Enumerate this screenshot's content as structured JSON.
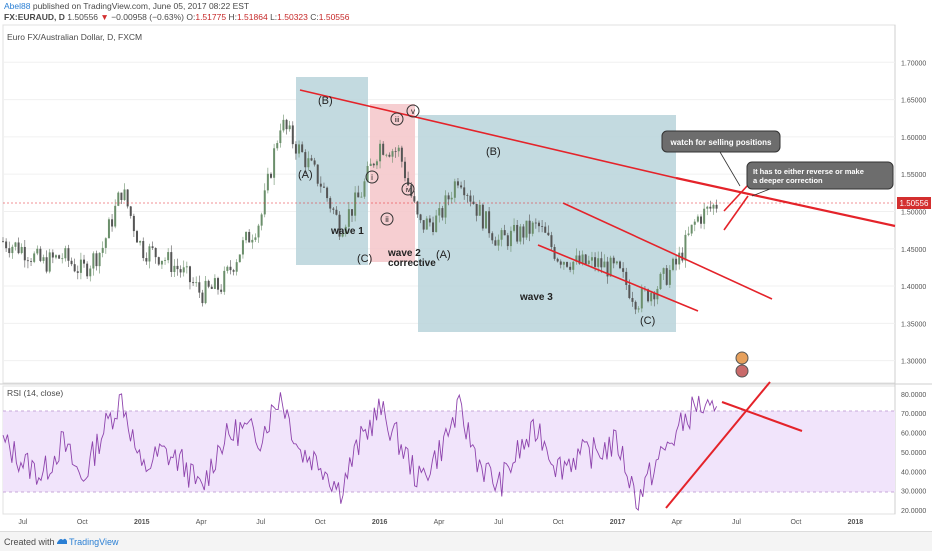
{
  "header": {
    "author": "Abel88",
    "published": "published on TradingView.com, June 05, 2017 08:22 EST",
    "symbol": "FX:EURAUD, D",
    "price": "1.50556",
    "arrow": "▼",
    "change": "−0.00958 (−0.63%)",
    "ohlc": {
      "o_label": "O:",
      "o": "1.51775",
      "h_label": "H:",
      "h": "1.51864",
      "l_label": "L:",
      "l": "1.50323",
      "c_label": "C:",
      "c": "1.50556"
    }
  },
  "footer": {
    "created": "Created with",
    "brand": "TradingView"
  },
  "chart_data": [
    {
      "type": "candlestick",
      "title": "Euro FX/Australian Dollar, D, FXCM",
      "ylim": [
        1.27,
        1.75
      ],
      "yticks": [
        "1.70000",
        "1.65000",
        "1.60000",
        "1.55000",
        "1.50000",
        "1.45000",
        "1.40000",
        "1.35000",
        "1.30000"
      ],
      "current_price_label": "1.50556",
      "xticks": [
        "Jul",
        "Oct",
        "2015",
        "Apr",
        "Jul",
        "Oct",
        "2016",
        "Apr",
        "Jul",
        "Oct",
        "2017",
        "Apr",
        "Jul",
        "Oct",
        "2018"
      ],
      "series": [
        {
          "values": [
            {
              "x": "2014-06",
              "y": 1.46
            },
            {
              "x": "2014-07",
              "y": 1.45
            },
            {
              "x": "2014-08",
              "y": 1.43
            },
            {
              "x": "2014-09",
              "y": 1.44
            },
            {
              "x": "2014-10",
              "y": 1.42
            },
            {
              "x": "2014-11",
              "y": 1.45
            },
            {
              "x": "2014-12",
              "y": 1.53
            },
            {
              "x": "2015-01",
              "y": 1.45
            },
            {
              "x": "2015-02",
              "y": 1.44
            },
            {
              "x": "2015-03",
              "y": 1.42
            },
            {
              "x": "2015-04",
              "y": 1.39
            },
            {
              "x": "2015-05",
              "y": 1.4
            },
            {
              "x": "2015-06",
              "y": 1.45
            },
            {
              "x": "2015-07",
              "y": 1.49
            },
            {
              "x": "2015-08",
              "y": 1.62
            },
            {
              "x": "2015-09",
              "y": 1.58
            },
            {
              "x": "2015-10",
              "y": 1.54
            },
            {
              "x": "2015-11",
              "y": 1.48
            },
            {
              "x": "2015-12",
              "y": 1.52
            },
            {
              "x": "2016-01",
              "y": 1.59
            },
            {
              "x": "2016-02",
              "y": 1.58
            },
            {
              "x": "2016-03",
              "y": 1.48
            },
            {
              "x": "2016-04",
              "y": 1.49
            },
            {
              "x": "2016-05",
              "y": 1.55
            },
            {
              "x": "2016-06",
              "y": 1.5
            },
            {
              "x": "2016-07",
              "y": 1.46
            },
            {
              "x": "2016-08",
              "y": 1.47
            },
            {
              "x": "2016-09",
              "y": 1.48
            },
            {
              "x": "2016-10",
              "y": 1.44
            },
            {
              "x": "2016-11",
              "y": 1.43
            },
            {
              "x": "2016-12",
              "y": 1.43
            },
            {
              "x": "2017-01",
              "y": 1.42
            },
            {
              "x": "2017-02",
              "y": 1.38
            },
            {
              "x": "2017-03",
              "y": 1.4
            },
            {
              "x": "2017-04",
              "y": 1.43
            },
            {
              "x": "2017-05",
              "y": 1.49
            },
            {
              "x": "2017-06",
              "y": 1.51
            }
          ]
        }
      ],
      "wave_labels": [
        "(A)",
        "(B)",
        "(C)",
        "wave 1",
        "i",
        "ii",
        "iii",
        "iv",
        "v",
        "wave 2",
        "corrective",
        "(A)",
        "(B)",
        "wave 3",
        "(C)"
      ],
      "annotations": [
        "watch for selling positions",
        "It has to either reverse or make a deeper correction"
      ]
    },
    {
      "type": "line",
      "title": "RSI (14, close)",
      "ylim": [
        18,
        84
      ],
      "yticks": [
        "80.0000",
        "70.0000",
        "60.0000",
        "50.0000",
        "40.0000",
        "30.0000",
        "20.0000"
      ],
      "band": [
        30,
        70
      ],
      "series": [
        {
          "values": [
            {
              "x": "2014-06",
              "y": 55
            },
            {
              "x": "2014-07",
              "y": 45
            },
            {
              "x": "2014-08",
              "y": 38
            },
            {
              "x": "2014-09",
              "y": 55
            },
            {
              "x": "2014-10",
              "y": 35
            },
            {
              "x": "2014-11",
              "y": 60
            },
            {
              "x": "2014-12",
              "y": 78
            },
            {
              "x": "2015-01",
              "y": 40
            },
            {
              "x": "2015-02",
              "y": 50
            },
            {
              "x": "2015-03",
              "y": 45
            },
            {
              "x": "2015-04",
              "y": 30
            },
            {
              "x": "2015-05",
              "y": 55
            },
            {
              "x": "2015-06",
              "y": 62
            },
            {
              "x": "2015-07",
              "y": 58
            },
            {
              "x": "2015-08",
              "y": 80
            },
            {
              "x": "2015-09",
              "y": 50
            },
            {
              "x": "2015-10",
              "y": 45
            },
            {
              "x": "2015-11",
              "y": 30
            },
            {
              "x": "2015-12",
              "y": 55
            },
            {
              "x": "2016-01",
              "y": 72
            },
            {
              "x": "2016-02",
              "y": 55
            },
            {
              "x": "2016-03",
              "y": 35
            },
            {
              "x": "2016-04",
              "y": 50
            },
            {
              "x": "2016-05",
              "y": 72
            },
            {
              "x": "2016-06",
              "y": 45
            },
            {
              "x": "2016-07",
              "y": 32
            },
            {
              "x": "2016-08",
              "y": 50
            },
            {
              "x": "2016-09",
              "y": 62
            },
            {
              "x": "2016-10",
              "y": 42
            },
            {
              "x": "2016-11",
              "y": 48
            },
            {
              "x": "2016-12",
              "y": 50
            },
            {
              "x": "2017-01",
              "y": 55
            },
            {
              "x": "2017-02",
              "y": 25
            },
            {
              "x": "2017-03",
              "y": 45
            },
            {
              "x": "2017-04",
              "y": 60
            },
            {
              "x": "2017-05",
              "y": 75
            },
            {
              "x": "2017-06",
              "y": 67
            }
          ]
        }
      ]
    }
  ],
  "colors": {
    "candle_up": "#6b8f6b",
    "candle_down": "#555555",
    "trend": "#e4232a",
    "rsi": "#8e44ad",
    "rsi_band": "#f1e4fb",
    "wave_box": "#b9d4da",
    "corrective_box": "#f5c6c9",
    "axis_text": "#555555",
    "price_tag": "#d32f2f"
  }
}
